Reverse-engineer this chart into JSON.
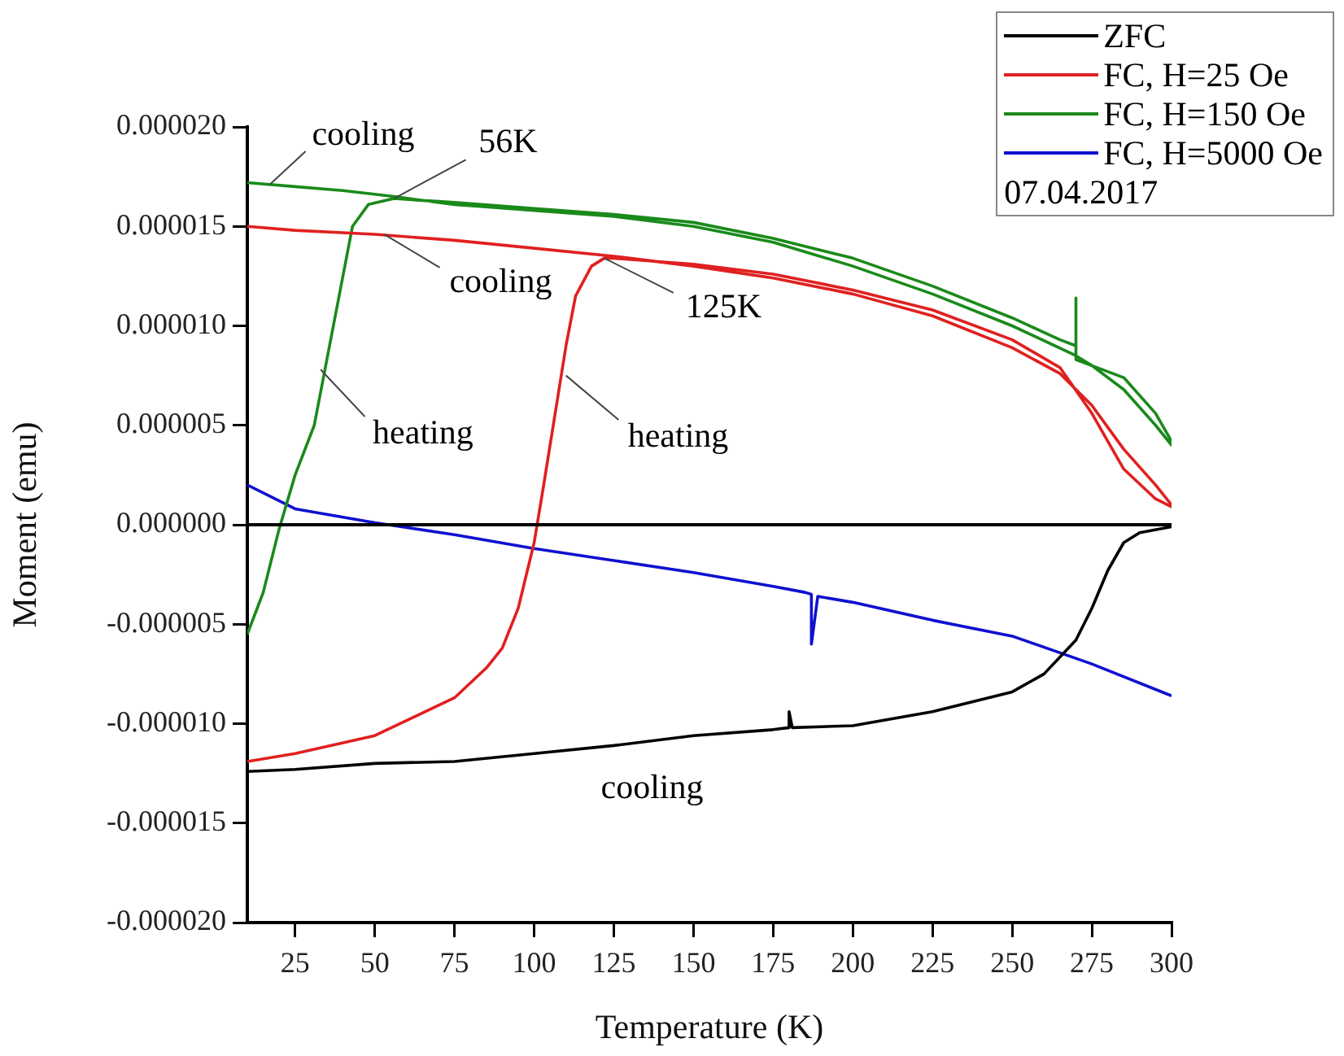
{
  "chart_data": {
    "type": "line",
    "xlabel": "Temperature (K)",
    "ylabel": "Moment (emu)",
    "xlim": [
      10,
      300
    ],
    "xticks": [
      25,
      50,
      75,
      100,
      125,
      150,
      175,
      200,
      225,
      250,
      275,
      300
    ],
    "ylim": [
      -2e-05,
      2e-05
    ],
    "yticks": [
      {
        "value": -2e-05,
        "label": "-0.000020"
      },
      {
        "value": -1.5e-05,
        "label": "-0.000015"
      },
      {
        "value": -1e-05,
        "label": "-0.000010"
      },
      {
        "value": -5e-06,
        "label": "-0.000005"
      },
      {
        "value": 0,
        "label": "0.000000"
      },
      {
        "value": 5e-06,
        "label": "0.000005"
      },
      {
        "value": 1e-05,
        "label": "0.000010"
      },
      {
        "value": 1.5e-05,
        "label": "0.000015"
      },
      {
        "value": 2e-05,
        "label": "0.000020"
      }
    ],
    "grid": false,
    "legend": "top right",
    "ref_lines": [
      {
        "axis": "y",
        "value": 0,
        "color": "#000000"
      }
    ],
    "series": [
      {
        "name": "ZFC",
        "color": "#000000",
        "x": [
          10,
          25,
          50,
          75,
          100,
          125,
          150,
          175,
          180,
          180,
          181,
          200,
          225,
          250,
          260,
          270,
          275,
          280,
          285,
          290,
          300
        ],
        "values": [
          -1.24e-05,
          -1.23e-05,
          -1.2e-05,
          -1.19e-05,
          -1.15e-05,
          -1.11e-05,
          -1.06e-05,
          -1.03e-05,
          -1.02e-05,
          -9.4e-06,
          -1.02e-05,
          -1.01e-05,
          -9.4e-06,
          -8.4e-06,
          -7.5e-06,
          -5.8e-06,
          -4.2e-06,
          -2.3e-06,
          -9e-07,
          -4e-07,
          -1e-07
        ]
      },
      {
        "name": "FC, H=25 Oe",
        "color": "#e02020",
        "x": [
          10,
          25,
          50,
          75,
          85,
          90,
          95,
          100,
          103,
          106,
          110,
          113,
          118,
          122,
          125,
          150,
          175,
          200,
          225,
          250,
          265,
          275,
          285,
          295,
          300,
          300,
          295,
          285,
          275,
          265,
          250,
          225,
          200,
          175,
          150,
          125,
          100,
          75,
          50,
          25,
          10
        ],
        "values": [
          -1.19e-05,
          -1.15e-05,
          -1.06e-05,
          -8.7e-06,
          -7.2e-06,
          -6.2e-06,
          -4.2e-06,
          -9e-07,
          2e-06,
          5e-06,
          9e-06,
          1.15e-05,
          1.3e-05,
          1.34e-05,
          1.34e-05,
          1.31e-05,
          1.26e-05,
          1.18e-05,
          1.08e-05,
          9.3e-06,
          7.9e-06,
          5.6e-06,
          2.8e-06,
          1.3e-06,
          9e-07,
          1e-06,
          2e-06,
          3.8e-06,
          6e-06,
          7.6e-06,
          8.9e-06,
          1.05e-05,
          1.16e-05,
          1.24e-05,
          1.3e-05,
          1.35e-05,
          1.39e-05,
          1.43e-05,
          1.46e-05,
          1.48e-05,
          1.5e-05
        ]
      },
      {
        "name": "FC, H=150 Oe",
        "color": "#1a8a1a",
        "x": [
          10,
          15,
          20,
          25,
          31,
          37,
          43,
          48,
          56,
          75,
          100,
          125,
          150,
          175,
          200,
          225,
          250,
          265,
          270,
          270,
          270,
          285,
          295,
          300,
          300,
          295,
          285,
          275,
          270,
          250,
          225,
          200,
          175,
          150,
          125,
          100,
          75,
          56,
          40,
          25,
          10
        ],
        "values": [
          -5.5e-06,
          -3.4e-06,
          -2e-07,
          2.5e-06,
          5e-06,
          1e-05,
          1.5e-05,
          1.61e-05,
          1.64e-05,
          1.62e-05,
          1.59e-05,
          1.56e-05,
          1.52e-05,
          1.44e-05,
          1.34e-05,
          1.2e-05,
          1.04e-05,
          9.3e-06,
          9e-06,
          1.14e-05,
          8.3e-06,
          7.4e-06,
          5.6e-06,
          4.2e-06,
          4e-06,
          5e-06,
          6.8e-06,
          8e-06,
          8.5e-06,
          1e-05,
          1.16e-05,
          1.3e-05,
          1.42e-05,
          1.5e-05,
          1.55e-05,
          1.58e-05,
          1.61e-05,
          1.65e-05,
          1.68e-05,
          1.7e-05,
          1.72e-05
        ]
      },
      {
        "name": "FC, H=5000 Oe",
        "color": "#1010d0",
        "x": [
          10,
          25,
          50,
          75,
          100,
          125,
          150,
          175,
          185,
          187,
          187,
          189,
          200,
          225,
          250,
          275,
          300
        ],
        "values": [
          2e-06,
          8e-07,
          1e-07,
          -5e-07,
          -1.2e-06,
          -1.8e-06,
          -2.4e-06,
          -3.1e-06,
          -3.4e-06,
          -3.5e-06,
          -6e-06,
          -3.6e-06,
          -3.9e-06,
          -4.8e-06,
          -5.6e-06,
          -7e-06,
          -8.6e-06
        ]
      }
    ],
    "annotations": [
      {
        "text": "cooling",
        "x": 17,
        "y": 1.71e-05
      },
      {
        "text": "56K",
        "x": 56,
        "y": 1.64e-05
      },
      {
        "text": "cooling",
        "x": 53,
        "y": 1.46e-05
      },
      {
        "text": "125K",
        "x": 122,
        "y": 1.34e-05
      },
      {
        "text": "heating",
        "x": 33,
        "y": 7.8e-06
      },
      {
        "text": "heating",
        "x": 110,
        "y": 7.5e-06
      },
      "cooling",
      "07.04.2017"
    ]
  }
}
